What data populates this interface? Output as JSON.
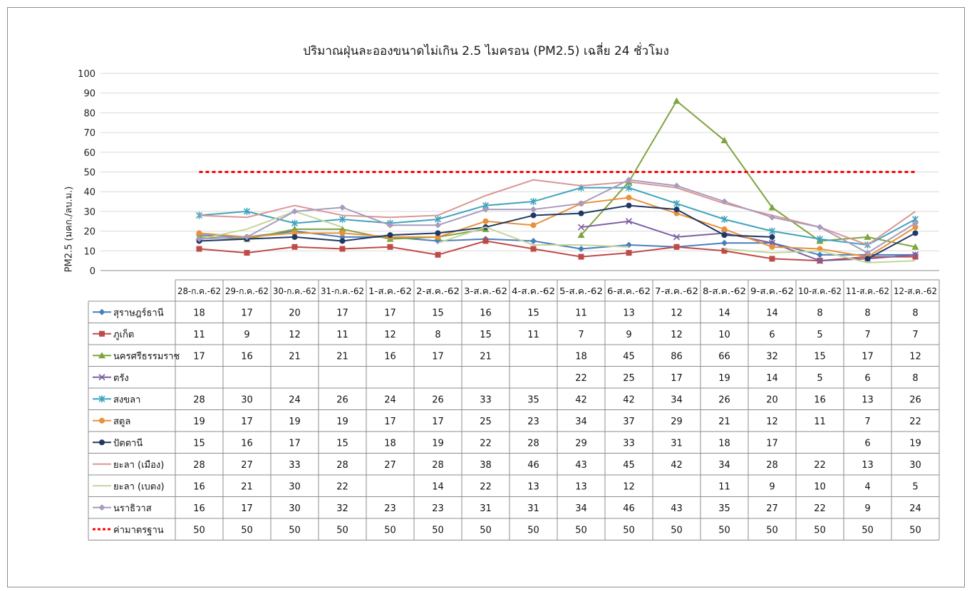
{
  "chart_data": {
    "type": "line",
    "title": "ปริมาณฝุ่นละอองขนาดไม่เกิน 2.5 ไมครอน (PM2.5) เฉลี่ย 24 ชั่วโมง",
    "xlabel": "",
    "ylabel": "PM2.5 (มคก./ลบ.ม.)",
    "ylim": [
      0,
      100
    ],
    "yticks": [
      0,
      10,
      20,
      30,
      40,
      50,
      60,
      70,
      80,
      90,
      100
    ],
    "grid": true,
    "legend": "data-table-below",
    "categories": [
      "28-ก.ค.-62",
      "29-ก.ค.-62",
      "30-ก.ค.-62",
      "31-ก.ค.-62",
      "1-ส.ค.-62",
      "2-ส.ค.-62",
      "3-ส.ค.-62",
      "4-ส.ค.-62",
      "5-ส.ค.-62",
      "6-ส.ค.-62",
      "7-ส.ค.-62",
      "8-ส.ค.-62",
      "9-ส.ค.-62",
      "10-ส.ค.-62",
      "11-ส.ค.-62",
      "12-ส.ค.-62"
    ],
    "series": [
      {
        "name": "สุราษฎร์ธานี",
        "color": "#4a7ebb",
        "marker": "diamond",
        "values": [
          18,
          17,
          20,
          17,
          17,
          15,
          16,
          15,
          11,
          13,
          12,
          14,
          14,
          8,
          8,
          8
        ]
      },
      {
        "name": "ภูเก็ต",
        "color": "#be4b48",
        "marker": "square",
        "values": [
          11,
          9,
          12,
          11,
          12,
          8,
          15,
          11,
          7,
          9,
          12,
          10,
          6,
          5,
          7,
          7
        ]
      },
      {
        "name": "นครศรีธรรมราช",
        "color": "#7fa33f",
        "marker": "triangle",
        "values": [
          17,
          16,
          21,
          21,
          16,
          17,
          21,
          null,
          18,
          45,
          86,
          66,
          32,
          15,
          17,
          12
        ]
      },
      {
        "name": "ตรัง",
        "color": "#7d5fa0",
        "marker": "x",
        "values": [
          null,
          null,
          null,
          null,
          null,
          null,
          null,
          null,
          22,
          25,
          17,
          19,
          14,
          5,
          6,
          8
        ]
      },
      {
        "name": "สงขลา",
        "color": "#3fa3bd",
        "marker": "star",
        "values": [
          28,
          30,
          24,
          26,
          24,
          26,
          33,
          35,
          42,
          42,
          34,
          26,
          20,
          16,
          13,
          26
        ]
      },
      {
        "name": "สตูล",
        "color": "#e8913a",
        "marker": "circle",
        "values": [
          19,
          17,
          19,
          19,
          17,
          17,
          25,
          23,
          34,
          37,
          29,
          21,
          12,
          11,
          7,
          22
        ]
      },
      {
        "name": "ปัตตานี",
        "color": "#1f3864",
        "marker": "circle",
        "values": [
          15,
          16,
          17,
          15,
          18,
          19,
          22,
          28,
          29,
          33,
          31,
          18,
          17,
          null,
          6,
          19
        ]
      },
      {
        "name": "ยะลา (เมือง)",
        "color": "#d99694",
        "marker": "none",
        "values": [
          28,
          27,
          33,
          28,
          27,
          28,
          38,
          46,
          43,
          45,
          42,
          34,
          28,
          22,
          13,
          30
        ]
      },
      {
        "name": "ยะลา (เบตง)",
        "color": "#c3d69b",
        "marker": "none",
        "values": [
          16,
          21,
          30,
          22,
          null,
          14,
          22,
          13,
          13,
          12,
          null,
          11,
          9,
          10,
          4,
          5
        ]
      },
      {
        "name": "นราธิวาส",
        "color": "#a99bbd",
        "marker": "diamond",
        "values": [
          16,
          17,
          30,
          32,
          23,
          23,
          31,
          31,
          34,
          46,
          43,
          35,
          27,
          22,
          9,
          24
        ]
      },
      {
        "name": "ค่ามาตรฐาน",
        "color": "#ff0000",
        "marker": "dashed",
        "values": [
          50,
          50,
          50,
          50,
          50,
          50,
          50,
          50,
          50,
          50,
          50,
          50,
          50,
          50,
          50,
          50
        ]
      }
    ]
  }
}
